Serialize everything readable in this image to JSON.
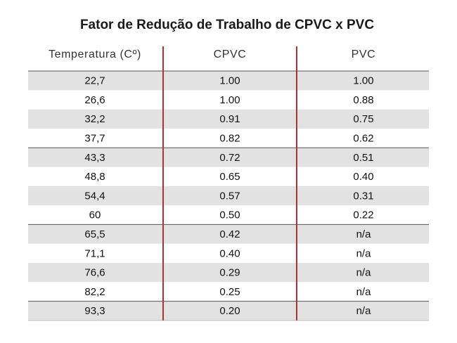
{
  "title": "Fator de Redução de Trabalho de CPVC x PVC",
  "table": {
    "header": [
      "Temperatura (Cº)",
      "CPVC",
      "PVC"
    ],
    "rows": [
      [
        "22,7",
        "1.00",
        "1.00"
      ],
      [
        "26,6",
        "1.00",
        "0.88"
      ],
      [
        "32,2",
        "0.91",
        "0.75"
      ],
      [
        "37,7",
        "0.82",
        "0.62"
      ],
      [
        "43,3",
        "0.72",
        "0.51"
      ],
      [
        "48,8",
        "0.65",
        "0.40"
      ],
      [
        "54,4",
        "0.57",
        "0.31"
      ],
      [
        "60",
        "0.50",
        "0.22"
      ],
      [
        "65,5",
        "0.42",
        "n/a"
      ],
      [
        "71,1",
        "0.40",
        "n/a"
      ],
      [
        "76,6",
        "0.29",
        "n/a"
      ],
      [
        "82,2",
        "0.25",
        "n/a"
      ],
      [
        "93,3",
        "0.20",
        "n/a"
      ]
    ]
  }
}
